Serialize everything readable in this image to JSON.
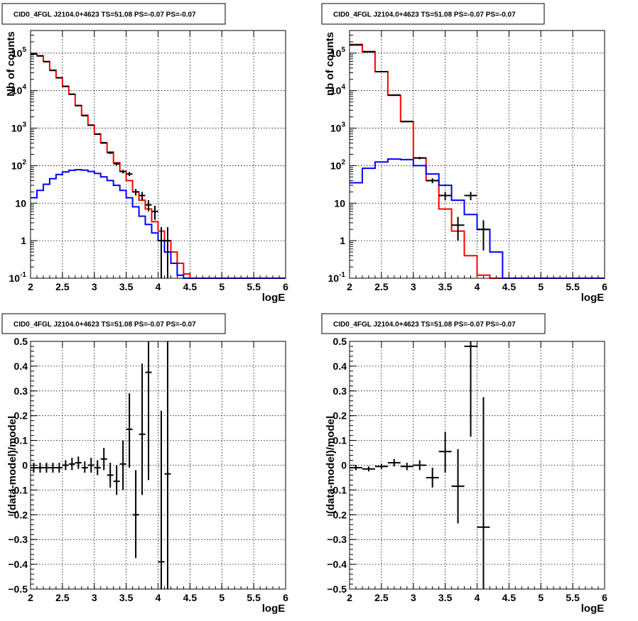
{
  "chart_data": [
    {
      "type": "line",
      "title": "CID0_4FGL J2104.0+4623 TS=51.08 PS=-0.07 PS=-0.07",
      "xlabel": "logE",
      "ylabel": "Nb of counts",
      "xlim": [
        2,
        6
      ],
      "ylim": [
        0.1,
        400000
      ],
      "yscale": "log",
      "grid": true,
      "x_ticks": [
        "2",
        "2.5",
        "3",
        "3.5",
        "4",
        "4.5",
        "5",
        "5.5",
        "6"
      ],
      "y_ticks": [
        {
          "base": "10",
          "exp": "-1",
          "value": 0.1
        },
        {
          "base": "1",
          "exp": "",
          "value": 1
        },
        {
          "base": "10",
          "exp": "",
          "value": 10
        },
        {
          "base": "10",
          "exp": "2",
          "value": 100
        },
        {
          "base": "10",
          "exp": "3",
          "value": 1000
        },
        {
          "base": "10",
          "exp": "4",
          "value": 10000
        },
        {
          "base": "10",
          "exp": "5",
          "value": 100000
        }
      ],
      "series": [
        {
          "color": "#ff0000",
          "style": "step",
          "bin_width": 0.1,
          "x_start": 2,
          "values": [
            95000,
            85000,
            60000,
            35000,
            22000,
            13000,
            8000,
            4000,
            2200,
            1200,
            700,
            400,
            230,
            120,
            70,
            40,
            20,
            12,
            7,
            3.2,
            1.8,
            1.0,
            0.5,
            0.25,
            0.13,
            0.08,
            0.08,
            0.08,
            0.08,
            0.08,
            0.08,
            0.08,
            0.08,
            0.08,
            0.08,
            0.08,
            0.08,
            0.08,
            0.08,
            0.08
          ]
        },
        {
          "color": "#0000ff",
          "style": "step",
          "bin_width": 0.1,
          "x_start": 2,
          "values": [
            14,
            22,
            32,
            45,
            58,
            68,
            75,
            78,
            76,
            70,
            62,
            50,
            40,
            30,
            22,
            14,
            8,
            4.5,
            2.7,
            1.6,
            1.0,
            0.5,
            0.25,
            0.12,
            0.08,
            0.08,
            0.08,
            0.08,
            0.08,
            0.08,
            0.08,
            0.08,
            0.08,
            0.08,
            0.08,
            0.08,
            0.08,
            0.08,
            0.08,
            0.08
          ]
        },
        {
          "color": "#000000",
          "style": "errorbar",
          "xerr": 0.05,
          "points": [
            {
              "x": 2.05,
              "y": 95000,
              "lo": 94000,
              "hi": 96000
            },
            {
              "x": 2.15,
              "y": 84000,
              "lo": 83000,
              "hi": 85000
            },
            {
              "x": 2.25,
              "y": 59000,
              "lo": 58500,
              "hi": 59500
            },
            {
              "x": 2.35,
              "y": 34500,
              "lo": 34000,
              "hi": 35000
            },
            {
              "x": 2.45,
              "y": 22000,
              "lo": 21700,
              "hi": 22300
            },
            {
              "x": 2.55,
              "y": 13000,
              "lo": 12800,
              "hi": 13200
            },
            {
              "x": 2.65,
              "y": 8000,
              "lo": 7900,
              "hi": 8100
            },
            {
              "x": 2.75,
              "y": 4000,
              "lo": 3930,
              "hi": 4070
            },
            {
              "x": 2.85,
              "y": 2150,
              "lo": 2100,
              "hi": 2200
            },
            {
              "x": 2.95,
              "y": 1200,
              "lo": 1170,
              "hi": 1230
            },
            {
              "x": 3.05,
              "y": 690,
              "lo": 665,
              "hi": 715
            },
            {
              "x": 3.15,
              "y": 410,
              "lo": 390,
              "hi": 430
            },
            {
              "x": 3.25,
              "y": 220,
              "lo": 205,
              "hi": 235
            },
            {
              "x": 3.35,
              "y": 112,
              "lo": 102,
              "hi": 122
            },
            {
              "x": 3.45,
              "y": 70,
              "lo": 62,
              "hi": 78
            },
            {
              "x": 3.55,
              "y": 60,
              "lo": 53,
              "hi": 68
            },
            {
              "x": 3.65,
              "y": 20,
              "lo": 16,
              "hi": 24
            },
            {
              "x": 3.75,
              "y": 16,
              "lo": 12,
              "hi": 20
            },
            {
              "x": 3.85,
              "y": 9,
              "lo": 6,
              "hi": 12
            },
            {
              "x": 3.95,
              "y": 6,
              "lo": 3.6,
              "hi": 8.5
            },
            {
              "x": 4.05,
              "y": 1,
              "lo": 0.1,
              "hi": 2.3
            },
            {
              "x": 4.15,
              "y": 1,
              "lo": 0.1,
              "hi": 2.3
            }
          ]
        }
      ]
    },
    {
      "type": "line",
      "title": "CID0_4FGL J2104.0+4623 TS=51.08 PS=-0.07 PS=-0.07",
      "xlabel": "logE",
      "ylabel": "nb of counts",
      "xlim": [
        2,
        6
      ],
      "ylim": [
        0.1,
        400000
      ],
      "yscale": "log",
      "grid": true,
      "x_ticks": [
        "2",
        "2.5",
        "3",
        "3.5",
        "4",
        "4.5",
        "5",
        "5.5",
        "6"
      ],
      "y_ticks": [
        {
          "base": "10",
          "exp": "-1",
          "value": 0.1
        },
        {
          "base": "1",
          "exp": "",
          "value": 1
        },
        {
          "base": "10",
          "exp": "",
          "value": 10
        },
        {
          "base": "10",
          "exp": "2",
          "value": 100
        },
        {
          "base": "10",
          "exp": "3",
          "value": 1000
        },
        {
          "base": "10",
          "exp": "4",
          "value": 10000
        },
        {
          "base": "10",
          "exp": "5",
          "value": 100000
        }
      ],
      "series": [
        {
          "color": "#ff0000",
          "style": "step",
          "bin_width": 0.2,
          "x_start": 2,
          "values": [
            170000,
            110000,
            32000,
            7500,
            1500,
            160,
            40,
            7,
            1.8,
            0.4,
            0.12,
            0.08,
            0.08,
            0.08,
            0.08,
            0.08,
            0.08,
            0.08,
            0.08,
            0.08
          ]
        },
        {
          "color": "#0000ff",
          "style": "step",
          "bin_width": 0.2,
          "x_start": 2,
          "values": [
            35,
            85,
            125,
            150,
            145,
            100,
            60,
            30,
            12,
            5,
            2,
            0.5,
            0.08,
            0.08,
            0.08,
            0.08,
            0.08,
            0.08,
            0.08,
            0.08
          ]
        },
        {
          "color": "#000000",
          "style": "errorbar",
          "xerr": 0.1,
          "points": [
            {
              "x": 2.1,
              "y": 165000,
              "lo": 163000,
              "hi": 167000
            },
            {
              "x": 2.3,
              "y": 108000,
              "lo": 107000,
              "hi": 109000
            },
            {
              "x": 2.5,
              "y": 32000,
              "lo": 31600,
              "hi": 32400
            },
            {
              "x": 2.7,
              "y": 7600,
              "lo": 7400,
              "hi": 7800
            },
            {
              "x": 2.9,
              "y": 1500,
              "lo": 1460,
              "hi": 1540
            },
            {
              "x": 3.1,
              "y": 160,
              "lo": 148,
              "hi": 172
            },
            {
              "x": 3.3,
              "y": 40,
              "lo": 34,
              "hi": 46
            },
            {
              "x": 3.5,
              "y": 16,
              "lo": 12,
              "hi": 20
            },
            {
              "x": 3.7,
              "y": 2.6,
              "lo": 1,
              "hi": 4.3
            },
            {
              "x": 3.9,
              "y": 16,
              "lo": 12,
              "hi": 20
            },
            {
              "x": 4.1,
              "y": 2,
              "lo": 0.55,
              "hi": 3.5
            }
          ]
        }
      ]
    },
    {
      "type": "scatter",
      "title": "CID0_4FGL J2104.0+4623 TS=51.08 PS=-0.07 PS=-0.07",
      "xlabel": "logE",
      "ylabel": "(data-model)/model",
      "xlim": [
        2,
        6
      ],
      "ylim": [
        -0.5,
        0.5
      ],
      "grid": true,
      "x_ticks": [
        "2",
        "2.5",
        "3",
        "3.5",
        "4",
        "4.5",
        "5",
        "5.5",
        "6"
      ],
      "y_ticks": [
        "-0.5",
        "-0.4",
        "-0.3",
        "-0.2",
        "-0.1",
        "0",
        "0.1",
        "0.2",
        "0.3",
        "0.4",
        "0.5"
      ],
      "series": [
        {
          "color": "#000000",
          "style": "errorbar",
          "xerr": 0.05,
          "points": [
            {
              "x": 2.05,
              "y": -0.01,
              "lo": -0.03,
              "hi": 0.01
            },
            {
              "x": 2.15,
              "y": -0.01,
              "lo": -0.03,
              "hi": 0.01
            },
            {
              "x": 2.25,
              "y": -0.01,
              "lo": -0.03,
              "hi": 0.01
            },
            {
              "x": 2.35,
              "y": -0.01,
              "lo": -0.03,
              "hi": 0.01
            },
            {
              "x": 2.45,
              "y": -0.01,
              "lo": -0.03,
              "hi": 0.01
            },
            {
              "x": 2.55,
              "y": 0.0,
              "lo": -0.02,
              "hi": 0.02
            },
            {
              "x": 2.65,
              "y": 0.005,
              "lo": -0.02,
              "hi": 0.03
            },
            {
              "x": 2.75,
              "y": 0.01,
              "lo": -0.015,
              "hi": 0.035
            },
            {
              "x": 2.85,
              "y": -0.01,
              "lo": -0.03,
              "hi": 0.015
            },
            {
              "x": 2.95,
              "y": 0.0,
              "lo": -0.03,
              "hi": 0.03
            },
            {
              "x": 3.05,
              "y": -0.01,
              "lo": -0.04,
              "hi": 0.02
            },
            {
              "x": 3.15,
              "y": 0.025,
              "lo": -0.02,
              "hi": 0.07
            },
            {
              "x": 3.25,
              "y": -0.04,
              "lo": -0.09,
              "hi": 0.01
            },
            {
              "x": 3.35,
              "y": -0.065,
              "lo": -0.12,
              "hi": 0.0
            },
            {
              "x": 3.45,
              "y": 0.005,
              "lo": -0.1,
              "hi": 0.1
            },
            {
              "x": 3.55,
              "y": 0.145,
              "lo": -0.01,
              "hi": 0.29
            },
            {
              "x": 3.65,
              "y": -0.2,
              "lo": -0.375,
              "hi": -0.02
            },
            {
              "x": 3.75,
              "y": 0.125,
              "lo": -0.12,
              "hi": 0.41
            },
            {
              "x": 3.85,
              "y": 0.375,
              "lo": -0.06,
              "hi": 0.5
            },
            {
              "x": 4.05,
              "y": -0.39,
              "lo": -0.5,
              "hi": 0.22
            },
            {
              "x": 4.15,
              "y": -0.035,
              "lo": -0.5,
              "hi": 0.5
            }
          ]
        }
      ]
    },
    {
      "type": "scatter",
      "title": "CID0_4FGL J2104.0+4623 TS=51.08 PS=-0.07 PS=-0.07",
      "xlabel": "logE",
      "ylabel": "(data-model)/model",
      "xlim": [
        2,
        6
      ],
      "ylim": [
        -0.5,
        0.5
      ],
      "grid": true,
      "x_ticks": [
        "2",
        "2.5",
        "3",
        "3.5",
        "4",
        "4.5",
        "5",
        "5.5",
        "6"
      ],
      "y_ticks": [
        "-0.5",
        "-0.4",
        "-0.3",
        "-0.2",
        "-0.1",
        "0",
        "0.1",
        "0.2",
        "0.3",
        "0.4",
        "0.5"
      ],
      "series": [
        {
          "color": "#000000",
          "style": "errorbar",
          "xerr": 0.1,
          "points": [
            {
              "x": 2.1,
              "y": -0.01,
              "lo": -0.02,
              "hi": 0.0
            },
            {
              "x": 2.3,
              "y": -0.015,
              "lo": -0.025,
              "hi": -0.005
            },
            {
              "x": 2.5,
              "y": -0.005,
              "lo": -0.015,
              "hi": 0.005
            },
            {
              "x": 2.7,
              "y": 0.01,
              "lo": -0.005,
              "hi": 0.025
            },
            {
              "x": 2.9,
              "y": -0.005,
              "lo": -0.02,
              "hi": 0.01
            },
            {
              "x": 3.1,
              "y": 0.0,
              "lo": -0.02,
              "hi": 0.02
            },
            {
              "x": 3.3,
              "y": -0.05,
              "lo": -0.09,
              "hi": -0.01
            },
            {
              "x": 3.5,
              "y": 0.055,
              "lo": -0.03,
              "hi": 0.135
            },
            {
              "x": 3.7,
              "y": -0.085,
              "lo": -0.235,
              "hi": 0.065
            },
            {
              "x": 3.9,
              "y": 0.48,
              "lo": 0.115,
              "hi": 0.5
            },
            {
              "x": 4.1,
              "y": -0.25,
              "lo": -0.5,
              "hi": 0.275
            }
          ]
        }
      ]
    }
  ]
}
